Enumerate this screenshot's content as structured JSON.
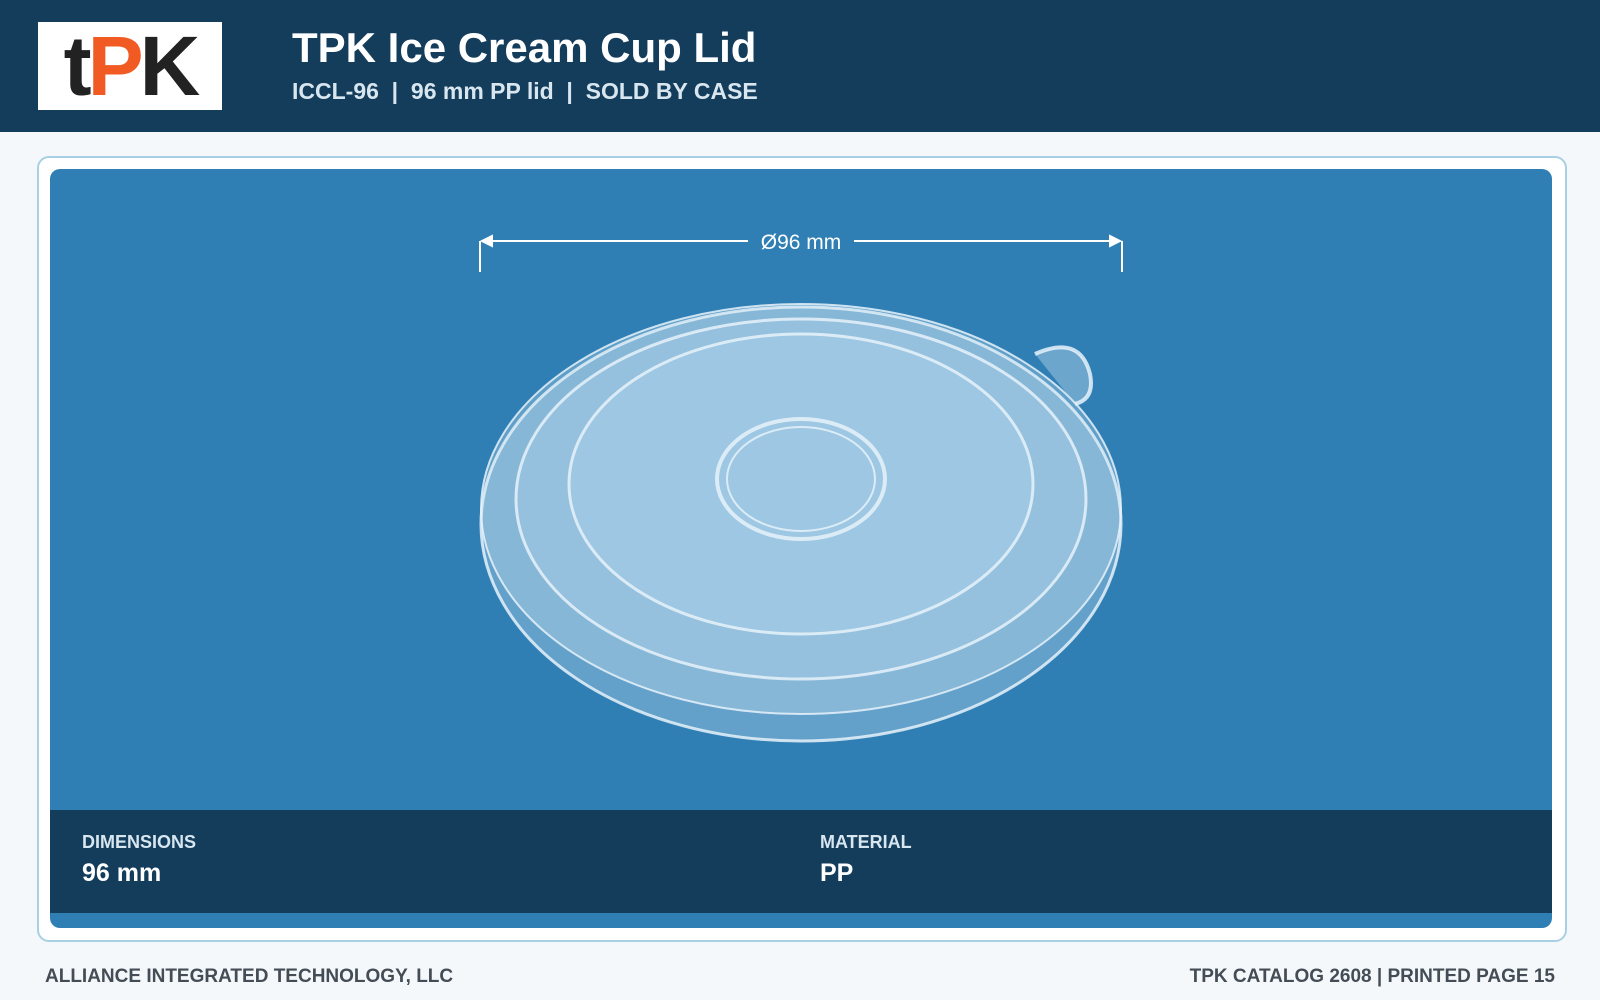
{
  "header": {
    "logo": [
      "t",
      "P",
      "K"
    ],
    "title": "TPK Ice Cream Cup Lid",
    "subtitle": "ICCL-96  |  96 mm PP lid  |  SOLD BY CASE"
  },
  "product": {
    "dimension_label": "Ø96 mm",
    "specs": [
      {
        "label": "DIMENSIONS",
        "value": "96 mm"
      },
      {
        "label": "MATERIAL",
        "value": "PP"
      }
    ]
  },
  "footer": {
    "left": "ALLIANCE INTEGRATED TECHNOLOGY, LLC",
    "right": "TPK CATALOG 2608 | PRINTED PAGE 15"
  }
}
